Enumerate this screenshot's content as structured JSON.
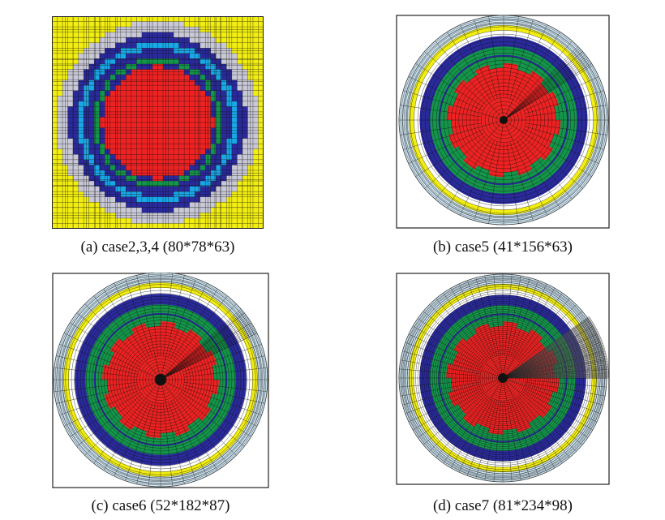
{
  "colors": {
    "red": "#ee2222",
    "green": "#14964a",
    "navy": "#2a2a9c",
    "cyan": "#19a8e6",
    "light_blue": "#cfe6f3",
    "gray": "#c8c8d6",
    "yellow": "#f2ee12",
    "mesh": "#101010"
  },
  "panels": [
    {
      "id": "a",
      "caption": "(a) case2,3,4 (80*78*63)",
      "mesh": "cartesian"
    },
    {
      "id": "b",
      "caption": "(b) case5 (41*156*63)",
      "mesh": "cylindrical"
    },
    {
      "id": "c",
      "caption": "(c) case6 (52*182*87)",
      "mesh": "cylindrical"
    },
    {
      "id": "d",
      "caption": "(d) case7 (81*234*98)",
      "mesh": "cylindrical-refined"
    }
  ]
}
